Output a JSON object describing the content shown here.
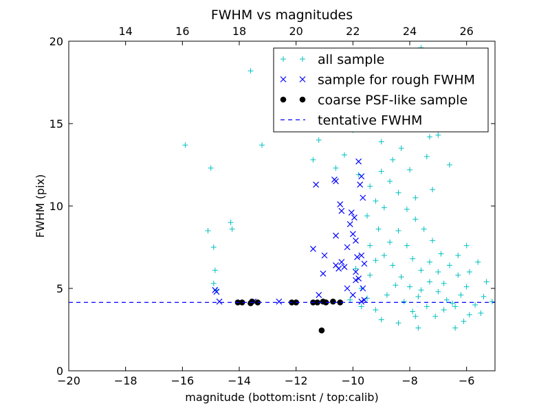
{
  "chart_data": {
    "type": "scatter",
    "title": "FWHM vs magnitudes",
    "xlabel": "magnitude (bottom:isnt / top:calib)",
    "ylabel": "FWHM (pix)",
    "xlim": [
      -20,
      -5
    ],
    "ylim": [
      0,
      20
    ],
    "x_ticks": [
      -20,
      -18,
      -16,
      -14,
      -12,
      -10,
      -8,
      -6
    ],
    "y_ticks": [
      0,
      5,
      10,
      15,
      20
    ],
    "top_axis": {
      "ticks": [
        14,
        16,
        18,
        20,
        22,
        24,
        26
      ],
      "calib_minus_isnt": 32.0
    },
    "grid": false,
    "legend_position": "top-right",
    "series": [
      {
        "name": "all sample",
        "marker": "plus",
        "color": "#00bfbf",
        "points": [
          [
            -15.9,
            13.7
          ],
          [
            -15.0,
            12.3
          ],
          [
            -14.3,
            9.0
          ],
          [
            -14.25,
            8.6
          ],
          [
            -13.6,
            18.2
          ],
          [
            -13.2,
            13.7
          ],
          [
            -15.1,
            8.5
          ],
          [
            -14.9,
            7.5
          ],
          [
            -14.85,
            6.1
          ],
          [
            -14.9,
            5.3
          ],
          [
            -14.8,
            4.9
          ],
          [
            -11.4,
            12.8
          ],
          [
            -11.2,
            14.0
          ],
          [
            -10.95,
            15.8
          ],
          [
            -10.6,
            12.3
          ],
          [
            -10.3,
            13.1
          ],
          [
            -12.5,
            15.5
          ],
          [
            -10.0,
            14.6
          ],
          [
            -9.8,
            18.0
          ],
          [
            -9.6,
            16.8
          ],
          [
            -9.3,
            17.5
          ],
          [
            -8.9,
            19.2
          ],
          [
            -8.5,
            18.6
          ],
          [
            -8.0,
            17.9
          ],
          [
            -7.6,
            19.6
          ],
          [
            -7.3,
            14.2
          ],
          [
            -7.0,
            14.3
          ],
          [
            -6.6,
            12.5
          ],
          [
            -8.2,
            14.9
          ],
          [
            -6.0,
            7.6
          ],
          [
            -5.6,
            6.6
          ],
          [
            -5.3,
            5.4
          ],
          [
            -5.1,
            4.2
          ],
          [
            -5.5,
            3.5
          ],
          [
            -6.4,
            2.6
          ],
          [
            -7.7,
            2.6
          ],
          [
            -7.8,
            3.3
          ],
          [
            -9.2,
            3.7
          ],
          [
            -9.5,
            4.4
          ],
          [
            -9.7,
            5.0
          ],
          [
            -9.4,
            5.8
          ],
          [
            -9.2,
            6.7
          ],
          [
            -9.4,
            7.6
          ],
          [
            -9.1,
            8.6
          ],
          [
            -9.5,
            9.4
          ],
          [
            -9.2,
            10.3
          ],
          [
            -9.4,
            11.2
          ],
          [
            -9.0,
            12.1
          ],
          [
            -8.7,
            11.5
          ],
          [
            -8.4,
            10.8
          ],
          [
            -8.1,
            9.8
          ],
          [
            -7.8,
            9.2
          ],
          [
            -7.5,
            8.6
          ],
          [
            -7.2,
            7.9
          ],
          [
            -6.9,
            7.1
          ],
          [
            -6.6,
            6.4
          ],
          [
            -6.3,
            5.8
          ],
          [
            -6.0,
            5.1
          ],
          [
            -6.2,
            4.6
          ],
          [
            -6.5,
            4.1
          ],
          [
            -6.8,
            3.7
          ],
          [
            -7.1,
            3.3
          ],
          [
            -7.4,
            3.9
          ],
          [
            -7.7,
            4.5
          ],
          [
            -8.0,
            5.1
          ],
          [
            -8.3,
            5.7
          ],
          [
            -8.6,
            6.4
          ],
          [
            -8.9,
            7.0
          ],
          [
            -8.7,
            7.8
          ],
          [
            -8.4,
            8.5
          ],
          [
            -8.1,
            7.6
          ],
          [
            -7.9,
            6.8
          ],
          [
            -7.6,
            6.1
          ],
          [
            -7.3,
            5.4
          ],
          [
            -7.0,
            4.8
          ],
          [
            -6.7,
            4.3
          ],
          [
            -6.4,
            3.9
          ],
          [
            -5.9,
            3.4
          ],
          [
            -5.7,
            4.0
          ],
          [
            -5.4,
            4.5
          ],
          [
            -8.8,
            4.6
          ],
          [
            -8.5,
            5.2
          ],
          [
            -8.2,
            4.2
          ],
          [
            -7.9,
            3.6
          ],
          [
            -7.6,
            4.9
          ],
          [
            -7.3,
            6.6
          ],
          [
            -7.0,
            6.0
          ],
          [
            -6.8,
            5.3
          ],
          [
            -7.8,
            10.5
          ],
          [
            -8.6,
            12.8
          ],
          [
            -9.0,
            13.9
          ],
          [
            -9.8,
            11.9
          ],
          [
            -8.0,
            12.2
          ],
          [
            -7.2,
            11.0
          ],
          [
            -8.9,
            9.9
          ],
          [
            -8.3,
            13.5
          ],
          [
            -7.4,
            13.0
          ],
          [
            -9.9,
            6.2
          ],
          [
            -9.7,
            3.9
          ],
          [
            -10.1,
            4.3
          ],
          [
            -9.0,
            3.1
          ],
          [
            -8.4,
            2.9
          ],
          [
            -6.1,
            3.0
          ],
          [
            -5.9,
            6.0
          ],
          [
            -6.3,
            7.0
          ]
        ]
      },
      {
        "name": "sample for rough FWHM",
        "marker": "x",
        "color": "#0000ff",
        "points": [
          [
            -14.85,
            4.9
          ],
          [
            -14.8,
            4.8
          ],
          [
            -14.7,
            4.2
          ],
          [
            -13.5,
            4.2
          ],
          [
            -12.6,
            4.2
          ],
          [
            -11.2,
            4.6
          ],
          [
            -11.05,
            5.9
          ],
          [
            -11.0,
            7.0
          ],
          [
            -10.6,
            8.2
          ],
          [
            -10.6,
            11.5
          ],
          [
            -10.65,
            11.6
          ],
          [
            -11.3,
            11.3
          ],
          [
            -11.4,
            7.4
          ],
          [
            -10.4,
            9.7
          ],
          [
            -10.45,
            10.1
          ],
          [
            -10.1,
            8.9
          ],
          [
            -10.05,
            9.6
          ],
          [
            -9.95,
            9.3
          ],
          [
            -9.7,
            11.8
          ],
          [
            -9.8,
            12.7
          ],
          [
            -9.75,
            11.3
          ],
          [
            -9.65,
            10.5
          ],
          [
            -9.9,
            7.9
          ],
          [
            -10.0,
            8.3
          ],
          [
            -9.85,
            6.9
          ],
          [
            -9.7,
            7.0
          ],
          [
            -9.6,
            6.5
          ],
          [
            -10.3,
            6.3
          ],
          [
            -10.2,
            7.5
          ],
          [
            -10.4,
            6.6
          ],
          [
            -10.5,
            6.2
          ],
          [
            -10.6,
            6.4
          ],
          [
            -9.9,
            5.5
          ],
          [
            -9.8,
            5.6
          ],
          [
            -9.65,
            5.0
          ],
          [
            -9.9,
            6.0
          ],
          [
            -10.2,
            5.0
          ],
          [
            -10.0,
            4.6
          ],
          [
            -9.6,
            4.3
          ],
          [
            -9.7,
            4.2
          ]
        ]
      },
      {
        "name": "coarse PSF-like sample",
        "marker": "circle",
        "color": "#000000",
        "points": [
          [
            -14.05,
            4.15
          ],
          [
            -13.9,
            4.15
          ],
          [
            -13.6,
            4.1
          ],
          [
            -13.55,
            4.2
          ],
          [
            -13.35,
            4.15
          ],
          [
            -12.15,
            4.15
          ],
          [
            -12.0,
            4.15
          ],
          [
            -11.4,
            4.15
          ],
          [
            -11.25,
            4.15
          ],
          [
            -11.05,
            4.2
          ],
          [
            -10.95,
            4.15
          ],
          [
            -10.7,
            4.2
          ],
          [
            -10.45,
            4.15
          ],
          [
            -11.1,
            2.45
          ]
        ]
      },
      {
        "name": "tentative FWHM",
        "line": "dashed",
        "color": "#0000ff",
        "y": 4.15
      }
    ]
  }
}
